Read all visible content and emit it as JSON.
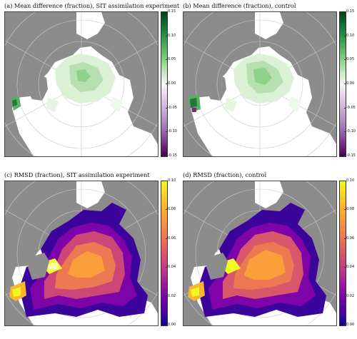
{
  "panels": [
    {
      "id": "a",
      "title": "(a)  Mean difference (fraction), SIT assimilation experiment",
      "colorbar": {
        "scheme": "diverging-purple-green",
        "min": -0.15,
        "max": 0.15,
        "ticks": [
          "0.15",
          "0.10",
          "0.05",
          "0.00",
          "-0.05",
          "-0.10",
          "-0.15"
        ],
        "tick_values": [
          0.15,
          0.1,
          0.05,
          0.0,
          -0.05,
          -0.1,
          -0.15
        ]
      }
    },
    {
      "id": "b",
      "title": "(b)  Mean difference (fraction), control",
      "colorbar": {
        "scheme": "diverging-purple-green",
        "min": -0.15,
        "max": 0.15,
        "ticks": [
          "0.15",
          "0.10",
          "0.05",
          "0.00",
          "-0.05",
          "-0.10",
          "-0.15"
        ],
        "tick_values": [
          0.15,
          0.1,
          0.05,
          0.0,
          -0.05,
          -0.1,
          -0.15
        ]
      }
    },
    {
      "id": "c",
      "title": "(c)  RMSD (fraction), SIT assimilation experiment",
      "colorbar": {
        "scheme": "plasma",
        "min": 0.0,
        "max": 0.1,
        "ticks": [
          "0.10",
          "0.08",
          "0.06",
          "0.04",
          "0.02",
          "0.00"
        ],
        "tick_values": [
          0.1,
          0.08,
          0.06,
          0.04,
          0.02,
          0.0
        ]
      }
    },
    {
      "id": "d",
      "title": "(d)  RMSD (fraction), control",
      "colorbar": {
        "scheme": "plasma",
        "min": 0.0,
        "max": 0.1,
        "ticks": [
          "0.10",
          "0.08",
          "0.06",
          "0.04",
          "0.02",
          "0.00"
        ],
        "tick_values": [
          0.1,
          0.08,
          0.06,
          0.04,
          0.02,
          0.0
        ]
      }
    }
  ],
  "colors": {
    "land": "#8c8c8c",
    "ocean": "#ffffff",
    "graticule": "#c8c8c8"
  }
}
